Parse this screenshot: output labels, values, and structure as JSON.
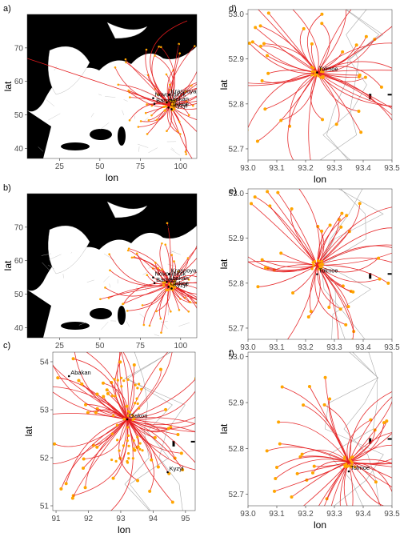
{
  "chart_data": [
    {
      "panel": "a)",
      "type": "map-trajectories",
      "xlabel": "lon",
      "ylabel": "lat",
      "xticks": [
        25,
        50,
        75,
        100
      ],
      "yticks": [
        40,
        50,
        60,
        70
      ],
      "xlim": [
        5,
        110
      ],
      "ylim": [
        37,
        80
      ],
      "places": [
        {
          "name": "Norilsk",
          "lon": 88,
          "lat": 69.3
        },
        {
          "name": "Krasnoyarsk",
          "lon": 93,
          "lat": 56
        },
        {
          "name": "Novosibirsk",
          "lon": 83,
          "lat": 55
        },
        {
          "name": "Barnaul",
          "lon": 83.8,
          "lat": 53.3
        },
        {
          "name": "Abakan",
          "lon": 91.4,
          "lat": 53.7
        },
        {
          "name": "Oiskoe",
          "lon": 92.5,
          "lat": 52.2
        },
        {
          "name": "Kyzyl",
          "lon": 94.4,
          "lat": 51.7
        }
      ],
      "source": {
        "lon": 93.2,
        "lat": 52.8
      },
      "line_color": "#e41a1c",
      "point_color": "#ffa500"
    },
    {
      "panel": "b)",
      "type": "map-trajectories",
      "xlabel": "lon",
      "ylabel": "lat",
      "xticks": [
        25,
        50,
        75,
        100
      ],
      "yticks": [
        40,
        50,
        60,
        70
      ],
      "xlim": [
        5,
        110
      ],
      "ylim": [
        37,
        80
      ],
      "places": [
        {
          "name": "Norilsk",
          "lon": 88,
          "lat": 69.3
        },
        {
          "name": "Krasnoyarsk",
          "lon": 93,
          "lat": 56
        },
        {
          "name": "Novosibirsk",
          "lon": 83,
          "lat": 55
        },
        {
          "name": "Barnaul",
          "lon": 83.8,
          "lat": 53.3
        },
        {
          "name": "Abakan",
          "lon": 91.4,
          "lat": 53.7
        },
        {
          "name": "Oiskoe",
          "lon": 92.5,
          "lat": 52.2
        },
        {
          "name": "Kyzyl",
          "lon": 94.4,
          "lat": 51.7
        }
      ],
      "source": {
        "lon": 93.2,
        "lat": 52.8
      },
      "line_color": "#e41a1c",
      "point_color": "#ffa500"
    },
    {
      "panel": "c)",
      "type": "map-trajectories",
      "xlabel": "lon",
      "ylabel": "lat",
      "xticks": [
        91,
        92,
        93,
        94,
        95
      ],
      "yticks": [
        51,
        52,
        53,
        54
      ],
      "xlim": [
        90.9,
        95.3
      ],
      "ylim": [
        50.9,
        54.2
      ],
      "places": [
        {
          "name": "Abakan",
          "lon": 91.4,
          "lat": 53.7
        },
        {
          "name": "Oiskon",
          "lon": 93.2,
          "lat": 52.8
        },
        {
          "name": "Kyzyl",
          "lon": 94.45,
          "lat": 51.7
        }
      ],
      "source": {
        "lon": 93.2,
        "lat": 52.8
      },
      "line_color": "#e41a1c",
      "point_color": "#ffa500"
    },
    {
      "panel": "d)",
      "type": "map-trajectories",
      "xlabel": "lon",
      "ylabel": "lat",
      "xticks": [
        "93.0",
        "93.1",
        "93.2",
        "93.3",
        "93.4",
        "93.5"
      ],
      "yticks": [
        "52.7",
        "52.8",
        "52.9",
        "53.0"
      ],
      "xlim": [
        93.0,
        93.5
      ],
      "ylim": [
        52.675,
        53.01
      ],
      "places": [
        {
          "name": "Tolmoe",
          "lon": 93.24,
          "lat": 52.87
        }
      ],
      "source": {
        "lon": 93.24,
        "lat": 52.87
      },
      "line_color": "#e41a1c",
      "point_color": "#ffa500"
    },
    {
      "panel": "e)",
      "type": "map-trajectories",
      "xlabel": "lon",
      "ylabel": "lat",
      "xticks": [
        "93.0",
        "93.1",
        "93.2",
        "93.3",
        "93.4",
        "93.5"
      ],
      "yticks": [
        "52.7",
        "52.8",
        "52.9",
        "53.0"
      ],
      "xlim": [
        93.0,
        93.5
      ],
      "ylim": [
        52.675,
        53.01
      ],
      "places": [
        {
          "name": "Tolmoe",
          "lon": 93.24,
          "lat": 52.82
        }
      ],
      "source": {
        "lon": 93.24,
        "lat": 52.84
      },
      "line_color": "#e41a1c",
      "point_color": "#ffa500"
    },
    {
      "panel": "f)",
      "type": "map-trajectories",
      "xlabel": "lon",
      "ylabel": "lat",
      "xticks": [
        "93.0",
        "93.1",
        "93.2",
        "93.3",
        "93.4",
        "93.5"
      ],
      "yticks": [
        "52.7",
        "52.8",
        "52.9",
        "53.0"
      ],
      "xlim": [
        93.0,
        93.5
      ],
      "ylim": [
        52.675,
        53.01
      ],
      "places": [
        {
          "name": "Tolmoe",
          "lon": 93.35,
          "lat": 52.75
        }
      ],
      "source": {
        "lon": 93.35,
        "lat": 52.77
      },
      "line_color": "#e41a1c",
      "point_color": "#ffa500"
    }
  ]
}
